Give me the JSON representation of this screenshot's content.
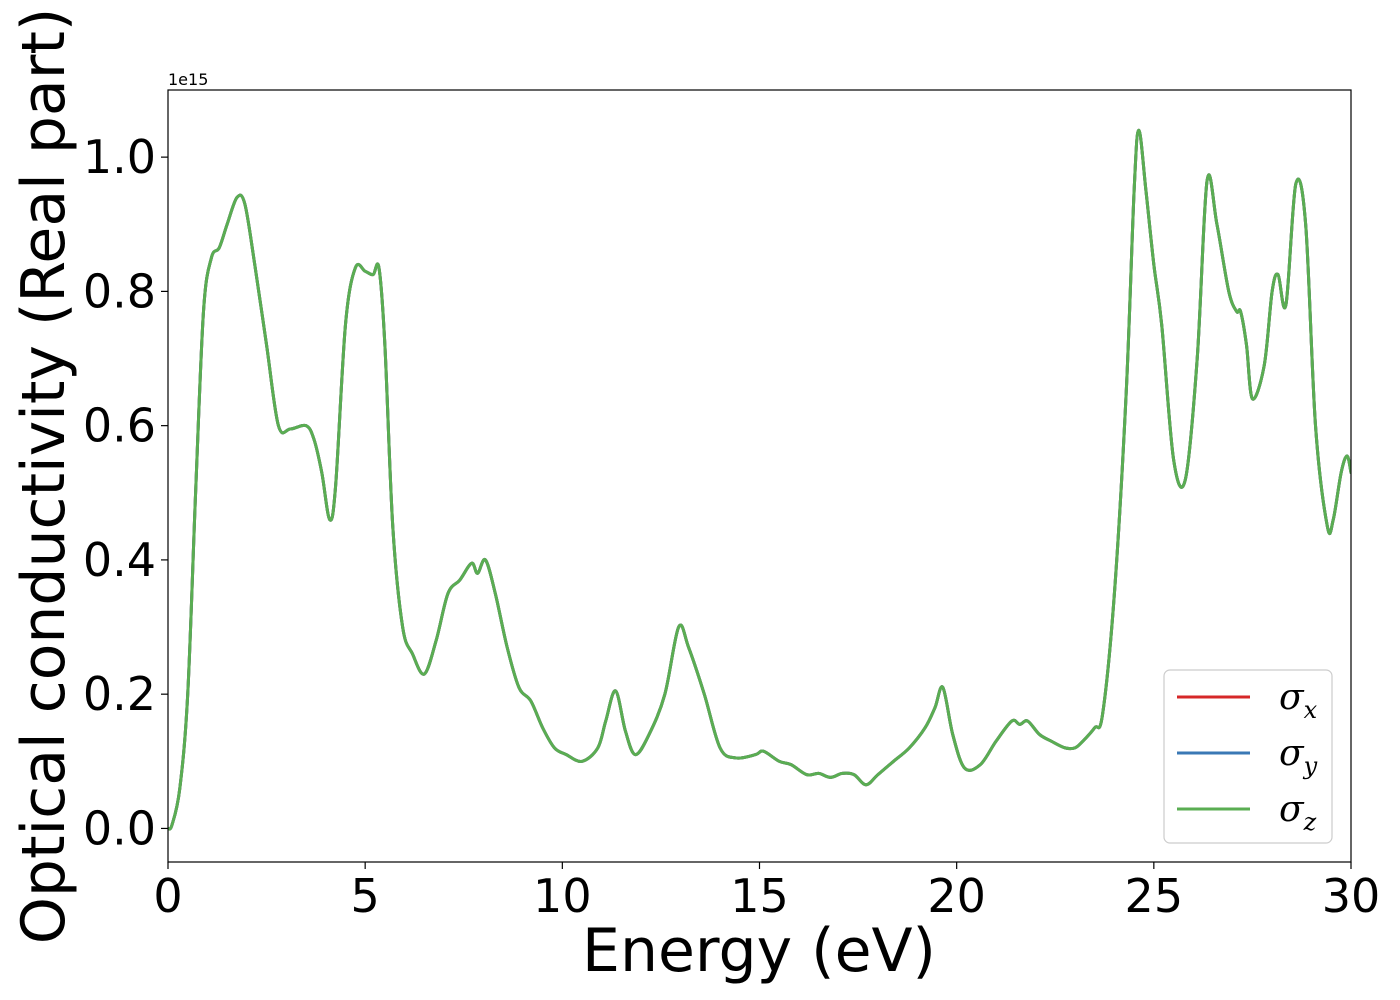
{
  "chart_data": {
    "type": "line",
    "xlabel": "Energy (eV)",
    "ylabel": "Optical conductivity (Real part)",
    "y_offset_label": "1e15",
    "xlim": [
      0,
      30
    ],
    "ylim": [
      -0.05,
      1.1
    ],
    "x_ticks": [
      0,
      5,
      10,
      15,
      20,
      25,
      30
    ],
    "x_tick_labels": [
      "0",
      "5",
      "10",
      "15",
      "20",
      "25",
      "30"
    ],
    "y_ticks": [
      0.0,
      0.2,
      0.4,
      0.6,
      0.8,
      1.0
    ],
    "y_tick_labels": [
      "0.0",
      "0.2",
      "0.4",
      "0.6",
      "0.8",
      "1.0"
    ],
    "grid": false,
    "legend_placement": "lower-right",
    "series": [
      {
        "name": "σ",
        "subscript": "x",
        "color": "#d62728"
      },
      {
        "name": "σ",
        "subscript": "y",
        "color": "#3a78b5"
      },
      {
        "name": "σ",
        "subscript": "z",
        "color": "#5aad52"
      }
    ],
    "x": [
      0,
      0.1,
      0.3,
      0.5,
      0.7,
      0.9,
      1.1,
      1.3,
      1.5,
      1.75,
      1.95,
      2.2,
      2.5,
      2.8,
      3.1,
      3.5,
      3.7,
      3.9,
      4.1,
      4.25,
      4.5,
      4.75,
      5.0,
      5.2,
      5.35,
      5.5,
      5.7,
      5.95,
      6.2,
      6.5,
      6.8,
      7.1,
      7.4,
      7.7,
      7.85,
      8.05,
      8.3,
      8.6,
      8.9,
      9.2,
      9.5,
      9.8,
      10.1,
      10.5,
      10.9,
      11.1,
      11.35,
      11.6,
      11.85,
      12.2,
      12.6,
      12.95,
      13.2,
      13.6,
      14.0,
      14.4,
      14.9,
      15.1,
      15.5,
      15.8,
      16.2,
      16.5,
      16.8,
      17.1,
      17.4,
      17.7,
      18.0,
      18.4,
      18.8,
      19.2,
      19.45,
      19.65,
      19.9,
      20.2,
      20.6,
      21.0,
      21.4,
      21.6,
      21.8,
      22.1,
      22.4,
      22.75,
      23.0,
      23.2,
      23.5,
      23.7,
      24.0,
      24.3,
      24.5,
      24.62,
      24.8,
      25.0,
      25.2,
      25.5,
      25.8,
      26.1,
      26.35,
      26.6,
      26.9,
      27.1,
      27.2,
      27.35,
      27.5,
      27.8,
      28.0,
      28.15,
      28.35,
      28.6,
      28.85,
      29.1,
      29.4,
      29.55,
      29.75,
      29.9,
      30.0
    ],
    "y": [
      0.0,
      0.005,
      0.06,
      0.2,
      0.5,
      0.77,
      0.85,
      0.865,
      0.9,
      0.94,
      0.93,
      0.84,
      0.72,
      0.6,
      0.595,
      0.6,
      0.58,
      0.53,
      0.46,
      0.51,
      0.75,
      0.835,
      0.83,
      0.825,
      0.835,
      0.72,
      0.45,
      0.3,
      0.26,
      0.23,
      0.28,
      0.35,
      0.37,
      0.395,
      0.38,
      0.4,
      0.35,
      0.27,
      0.21,
      0.19,
      0.15,
      0.12,
      0.11,
      0.1,
      0.12,
      0.16,
      0.205,
      0.145,
      0.11,
      0.14,
      0.2,
      0.3,
      0.27,
      0.2,
      0.12,
      0.105,
      0.11,
      0.115,
      0.1,
      0.095,
      0.08,
      0.082,
      0.076,
      0.082,
      0.08,
      0.065,
      0.08,
      0.1,
      0.12,
      0.15,
      0.18,
      0.21,
      0.14,
      0.09,
      0.095,
      0.13,
      0.16,
      0.155,
      0.16,
      0.14,
      0.13,
      0.12,
      0.12,
      0.13,
      0.15,
      0.17,
      0.35,
      0.65,
      0.95,
      1.04,
      0.95,
      0.84,
      0.75,
      0.55,
      0.52,
      0.7,
      0.965,
      0.9,
      0.8,
      0.77,
      0.77,
      0.72,
      0.64,
      0.69,
      0.8,
      0.825,
      0.78,
      0.96,
      0.9,
      0.6,
      0.45,
      0.46,
      0.53,
      0.555,
      0.53
    ]
  }
}
